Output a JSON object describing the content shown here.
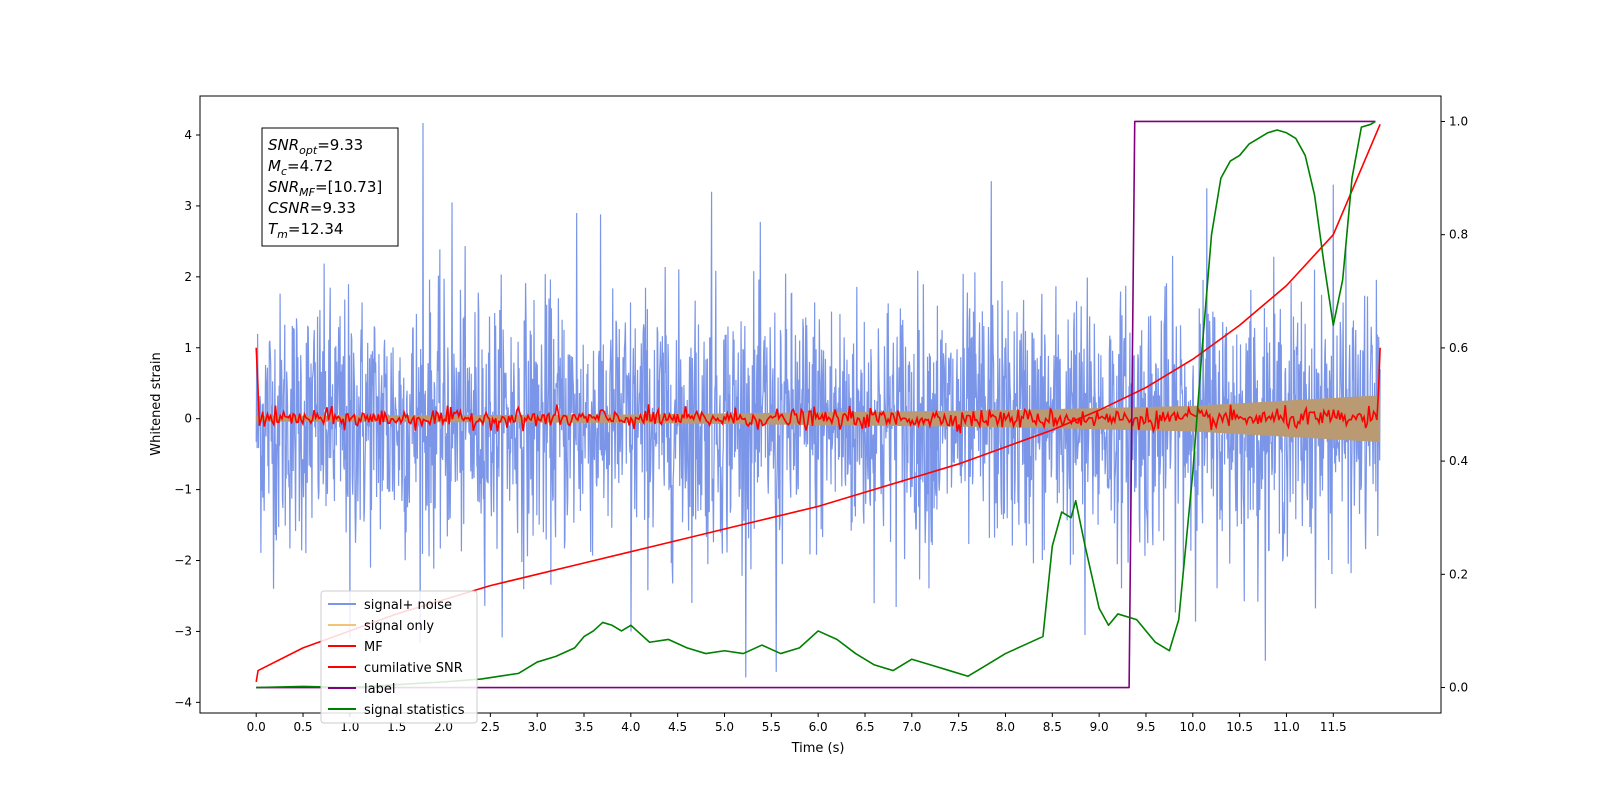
{
  "chart_data": {
    "type": "line",
    "title": "",
    "xlabel": "Time (s)",
    "ylabel": "Whitened strain",
    "y2label": "",
    "xlim": [
      -0.6,
      12.65
    ],
    "ylim": [
      -4.15,
      4.55
    ],
    "y2lim": [
      -0.045,
      1.045
    ],
    "x_ticks": [
      0.0,
      0.5,
      1.0,
      1.5,
      2.0,
      2.5,
      3.0,
      3.5,
      4.0,
      4.5,
      5.0,
      5.5,
      6.0,
      6.5,
      7.0,
      7.5,
      8.0,
      8.5,
      9.0,
      9.5,
      10.0,
      10.5,
      11.0,
      11.5
    ],
    "x_tick_labels": [
      "0.0",
      "0.5",
      "1.0",
      "1.5",
      "2.0",
      "2.5",
      "3.0",
      "3.5",
      "4.0",
      "4.5",
      "5.0",
      "5.5",
      "6.0",
      "6.5",
      "7.0",
      "7.5",
      "8.0",
      "8.5",
      "9.0",
      "9.5",
      "10.0",
      "10.5",
      "11.0",
      "11.5"
    ],
    "y_ticks": [
      4,
      3,
      2,
      1,
      0,
      -1,
      -2,
      -3,
      -4
    ],
    "y_tick_labels": [
      "4",
      "3",
      "2",
      "1",
      "0",
      "−1",
      "−2",
      "−3",
      "−4"
    ],
    "y2_ticks": [
      1.0,
      0.8,
      0.6,
      0.4,
      0.2,
      0.0
    ],
    "y2_tick_labels": [
      "1.0",
      "0.8",
      "0.6",
      "0.4",
      "0.2",
      "0.0"
    ],
    "grid": false,
    "legend_position": "lower-left",
    "annotation_box": [
      {
        "base": "SNR",
        "sub": "opt",
        "value": "=9.33"
      },
      {
        "base": "M",
        "sub": "c",
        "value": "=4.72"
      },
      {
        "base": "SNR",
        "sub": "MF",
        "value": "=[10.73]"
      },
      {
        "base": "CSNR",
        "sub": "",
        "value": "=9.33"
      },
      {
        "base": "T",
        "sub": "m",
        "value": "=12.34"
      }
    ],
    "series": [
      {
        "name": "signal+ noise",
        "axis": "left",
        "color": "#7b96e8",
        "kind": "noise_band",
        "x_range": [
          0.0,
          12.0
        ],
        "center": -0.05,
        "typical_range": [
          -1.7,
          1.7
        ],
        "extremes": [
          {
            "x": 1.78,
            "y": 4.17
          },
          {
            "x": 2.09,
            "y": 3.05
          },
          {
            "x": 3.42,
            "y": 2.9
          },
          {
            "x": 4.86,
            "y": 3.2
          },
          {
            "x": 7.85,
            "y": 3.35
          },
          {
            "x": 10.15,
            "y": 3.25
          },
          {
            "x": 11.5,
            "y": 3.3
          },
          {
            "x": 3.42,
            "y": -3.77
          },
          {
            "x": 5.55,
            "y": -3.57
          },
          {
            "x": 1.0,
            "y": -3.1
          },
          {
            "x": 8.85,
            "y": -3.05
          },
          {
            "x": 4.0,
            "y": -3.0
          }
        ]
      },
      {
        "name": "signal only",
        "axis": "left",
        "color": "#f2c47a",
        "kind": "chirp_envelope",
        "x_range": [
          0.0,
          12.0
        ],
        "amplitude": [
          [
            0.0,
            0.04
          ],
          [
            4.0,
            0.06
          ],
          [
            8.0,
            0.12
          ],
          [
            10.0,
            0.18
          ],
          [
            12.0,
            0.33
          ]
        ]
      },
      {
        "name": "MF",
        "axis": "left",
        "color": "#ff0000",
        "kind": "noise_line",
        "x_range": [
          0.0,
          12.0
        ],
        "center": 0.0,
        "typical_range": [
          -0.15,
          0.15
        ],
        "edge_values": [
          {
            "x": 0.0,
            "y": 1.0
          },
          {
            "x": 12.0,
            "y": 1.0
          }
        ]
      },
      {
        "name": "cumilative SNR",
        "axis": "right",
        "color": "#ff0000",
        "kind": "line",
        "x": [
          0.0,
          0.02,
          0.5,
          1.0,
          1.5,
          2.0,
          2.5,
          3.0,
          3.5,
          4.0,
          4.5,
          5.0,
          5.5,
          6.0,
          6.5,
          7.0,
          7.5,
          8.0,
          8.5,
          9.0,
          9.5,
          10.0,
          10.5,
          11.0,
          11.5,
          12.0
        ],
        "y": [
          0.01,
          0.03,
          0.07,
          0.1,
          0.13,
          0.155,
          0.18,
          0.2,
          0.22,
          0.24,
          0.26,
          0.28,
          0.3,
          0.32,
          0.345,
          0.37,
          0.395,
          0.425,
          0.455,
          0.49,
          0.53,
          0.58,
          0.64,
          0.71,
          0.8,
          0.995
        ]
      },
      {
        "name": "label",
        "axis": "right",
        "color": "#800080",
        "kind": "step",
        "x": [
          0.0,
          9.32,
          9.38,
          11.95
        ],
        "y": [
          0.0,
          0.0,
          1.0,
          1.0
        ]
      },
      {
        "name": "signal statistics",
        "axis": "right",
        "color": "#008000",
        "kind": "line",
        "x": [
          0.0,
          0.5,
          1.0,
          1.5,
          2.0,
          2.4,
          2.6,
          2.8,
          3.0,
          3.2,
          3.4,
          3.5,
          3.6,
          3.7,
          3.8,
          3.9,
          4.0,
          4.2,
          4.4,
          4.6,
          4.8,
          5.0,
          5.2,
          5.4,
          5.6,
          5.8,
          6.0,
          6.2,
          6.4,
          6.6,
          6.8,
          7.0,
          7.2,
          7.4,
          7.6,
          7.8,
          8.0,
          8.2,
          8.4,
          8.5,
          8.6,
          8.7,
          8.75,
          8.85,
          9.0,
          9.1,
          9.2,
          9.4,
          9.6,
          9.75,
          9.85,
          10.0,
          10.1,
          10.2,
          10.3,
          10.4,
          10.5,
          10.6,
          10.7,
          10.8,
          10.9,
          11.0,
          11.1,
          11.2,
          11.3,
          11.4,
          11.5,
          11.6,
          11.7,
          11.8,
          11.9,
          11.95
        ],
        "y": [
          0.0,
          0.002,
          0.0,
          0.005,
          0.01,
          0.015,
          0.02,
          0.025,
          0.045,
          0.055,
          0.07,
          0.09,
          0.1,
          0.115,
          0.11,
          0.1,
          0.11,
          0.08,
          0.085,
          0.07,
          0.06,
          0.065,
          0.06,
          0.075,
          0.06,
          0.07,
          0.1,
          0.085,
          0.06,
          0.04,
          0.03,
          0.05,
          0.04,
          0.03,
          0.02,
          0.04,
          0.06,
          0.075,
          0.09,
          0.25,
          0.31,
          0.3,
          0.33,
          0.25,
          0.14,
          0.11,
          0.13,
          0.12,
          0.08,
          0.065,
          0.12,
          0.38,
          0.6,
          0.8,
          0.9,
          0.93,
          0.94,
          0.96,
          0.97,
          0.98,
          0.985,
          0.98,
          0.97,
          0.94,
          0.87,
          0.75,
          0.64,
          0.72,
          0.9,
          0.99,
          0.995,
          1.0
        ]
      }
    ]
  }
}
